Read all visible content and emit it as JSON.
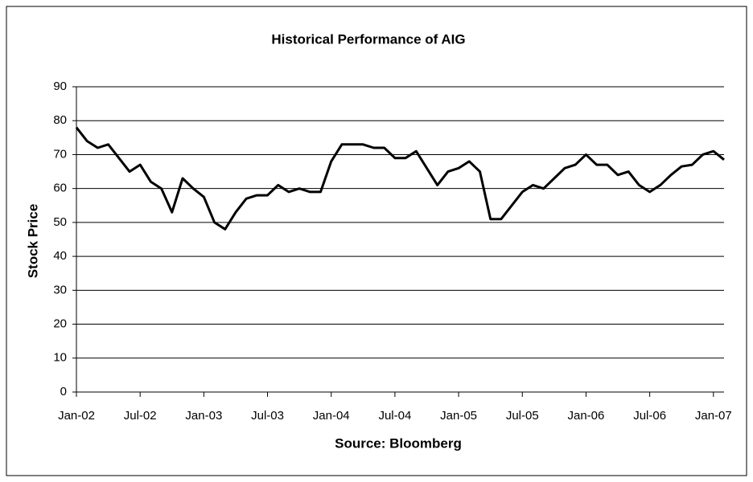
{
  "chart_data": {
    "type": "line",
    "title": "Historical Performance of AIG",
    "y_label": "Stock Price",
    "x_label": "Source: Bloomberg",
    "x": [
      "2002-01",
      "2002-02",
      "2002-03",
      "2002-04",
      "2002-05",
      "2002-06",
      "2002-07",
      "2002-08",
      "2002-09",
      "2002-10",
      "2002-11",
      "2002-12",
      "2003-01",
      "2003-02",
      "2003-03",
      "2003-04",
      "2003-05",
      "2003-06",
      "2003-07",
      "2003-08",
      "2003-09",
      "2003-10",
      "2003-11",
      "2003-12",
      "2004-01",
      "2004-02",
      "2004-03",
      "2004-04",
      "2004-05",
      "2004-06",
      "2004-07",
      "2004-08",
      "2004-09",
      "2004-10",
      "2004-11",
      "2004-12",
      "2005-01",
      "2005-02",
      "2005-03",
      "2005-04",
      "2005-05",
      "2005-06",
      "2005-07",
      "2005-08",
      "2005-09",
      "2005-10",
      "2005-11",
      "2005-12",
      "2006-01",
      "2006-02",
      "2006-03",
      "2006-04",
      "2006-05",
      "2006-06",
      "2006-07",
      "2006-08",
      "2006-09",
      "2006-10",
      "2006-11",
      "2006-12",
      "2007-01",
      "2007-02"
    ],
    "series": [
      {
        "name": "AIG",
        "color": "#000000",
        "values": [
          78,
          74,
          72,
          73,
          69,
          65,
          67,
          62,
          60,
          53,
          63,
          60,
          57.5,
          50,
          48,
          53,
          57,
          58,
          58,
          61,
          59,
          60,
          59,
          59,
          68,
          73,
          73,
          73,
          72,
          72,
          69,
          69,
          71,
          66,
          61,
          65,
          66,
          68,
          65,
          51,
          51,
          55,
          59,
          61,
          60,
          63,
          66,
          67,
          70,
          67,
          67,
          64,
          65,
          61,
          59,
          61,
          64,
          66.5,
          67,
          70,
          71,
          68.5
        ]
      }
    ],
    "xlim": [
      "2002-01",
      "2007-02"
    ],
    "xticks": [
      {
        "value": "2002-01",
        "label": "Jan-02"
      },
      {
        "value": "2002-07",
        "label": "Jul-02"
      },
      {
        "value": "2003-01",
        "label": "Jan-03"
      },
      {
        "value": "2003-07",
        "label": "Jul-03"
      },
      {
        "value": "2004-01",
        "label": "Jan-04"
      },
      {
        "value": "2004-07",
        "label": "Jul-04"
      },
      {
        "value": "2005-01",
        "label": "Jan-05"
      },
      {
        "value": "2005-07",
        "label": "Jul-05"
      },
      {
        "value": "2006-01",
        "label": "Jan-06"
      },
      {
        "value": "2006-07",
        "label": "Jul-06"
      },
      {
        "value": "2007-01",
        "label": "Jan-07"
      }
    ],
    "ylim": [
      0,
      90
    ],
    "yticks": [
      0,
      10,
      20,
      30,
      40,
      50,
      60,
      70,
      80,
      90
    ],
    "grid": true
  }
}
